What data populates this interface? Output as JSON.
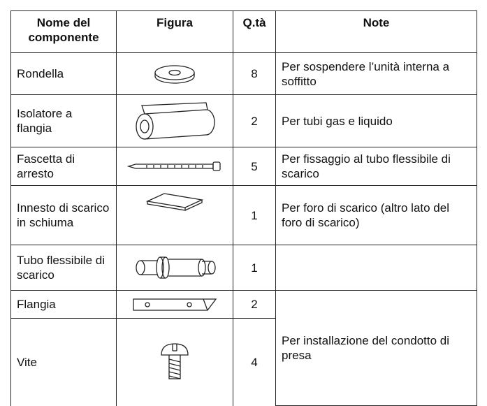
{
  "table": {
    "header": [
      "Nome del componente",
      "Figura",
      "Q.tà",
      "Note"
    ],
    "rows": [
      {
        "name": "Rondella",
        "qty": 8,
        "note": "Per sospendere l’unità interna a soffitto"
      },
      {
        "name": "Isolatore a flangia",
        "qty": 2,
        "note": "Per tubi gas e liquido"
      },
      {
        "name": "Fascetta di arresto",
        "qty": 5,
        "note": "Per fissaggio al tubo flessibile di scarico"
      },
      {
        "name": "Innesto di scarico in schiuma",
        "qty": 1,
        "note": "Per foro di scarico (altro lato del foro di scarico)"
      },
      {
        "name": "Tubo flessibile di scarico",
        "qty": 1
      },
      {
        "name": "Flangia",
        "qty": 2,
        "note": "Per installazione del condotto di presa"
      },
      {
        "name": "Vite",
        "qty": 4
      }
    ]
  }
}
